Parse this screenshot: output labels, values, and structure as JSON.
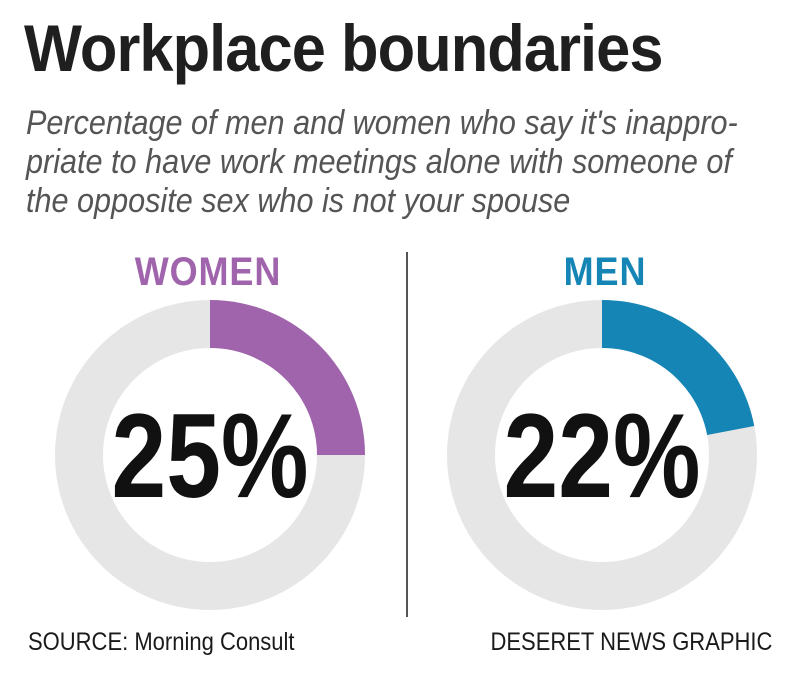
{
  "header": {
    "title": "Workplace boundaries",
    "subtitle_lines": [
      "Percentage of men and women who say it's inappro-",
      "priate to have work meetings alone with someone of",
      "the opposite sex who is not your spouse"
    ]
  },
  "chart_data": {
    "type": "pie",
    "charts": [
      {
        "label": "WOMEN",
        "value": 25,
        "value_text": "25%",
        "color": "#a064ac"
      },
      {
        "label": "MEN",
        "value": 22,
        "value_text": "22%",
        "color": "#1585b5"
      }
    ],
    "remainder_color": "#e6e6e6",
    "unit": "%"
  },
  "footer": {
    "source": "SOURCE: Morning Consult",
    "credit": "DESERET NEWS GRAPHIC"
  }
}
